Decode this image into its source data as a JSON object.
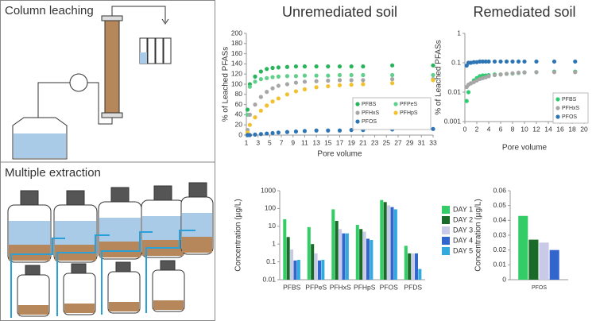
{
  "diagrams": {
    "column_leaching": {
      "title": "Column leaching"
    },
    "multiple_extraction": {
      "title": "Multiple extraction"
    }
  },
  "chart_data": [
    {
      "type": "scatter",
      "title": "Unremediated soil",
      "x_label": "Pore volume",
      "y_label": "% of Leached PFASs",
      "x": [
        1.2,
        1.6,
        2.5,
        3.5,
        4.5,
        5.5,
        6.5,
        8,
        9.5,
        11,
        13,
        15,
        17,
        19,
        21,
        26,
        33
      ],
      "xlim": [
        1,
        33
      ],
      "xticks": [
        1,
        3,
        5,
        7,
        9,
        11,
        13,
        15,
        17,
        19,
        21,
        23,
        25,
        27,
        29,
        31,
        33
      ],
      "ylim": [
        0,
        200
      ],
      "yticks": [
        0,
        20,
        40,
        60,
        80,
        100,
        120,
        140,
        160,
        180,
        200
      ],
      "log_y": false,
      "legend": "lower right",
      "series": [
        {
          "name": "PFBS",
          "color": "#29b35a",
          "values": [
            50,
            100,
            115,
            125,
            130,
            132,
            133,
            134,
            135,
            135,
            135,
            135,
            135,
            135,
            135,
            137,
            137
          ]
        },
        {
          "name": "PFPeS",
          "color": "#5fd08a",
          "values": [
            40,
            95,
            105,
            110,
            112,
            114,
            115,
            116,
            116,
            117,
            117,
            117,
            118,
            118,
            118,
            118,
            118
          ]
        },
        {
          "name": "PFHxS",
          "color": "#a6a6a6",
          "values": [
            10,
            40,
            60,
            75,
            85,
            92,
            97,
            100,
            103,
            105,
            106,
            107,
            108,
            108,
            108,
            110,
            110
          ]
        },
        {
          "name": "PFHpS",
          "color": "#f2c12e",
          "values": [
            5,
            20,
            35,
            48,
            58,
            66,
            72,
            80,
            86,
            90,
            94,
            96,
            98,
            99,
            100,
            102,
            108
          ]
        },
        {
          "name": "PFOS",
          "color": "#2e75b6",
          "values": [
            0,
            0,
            1,
            2,
            3,
            4,
            5,
            6,
            7,
            8,
            9,
            9,
            9,
            10,
            10,
            11,
            12
          ]
        }
      ]
    },
    {
      "type": "scatter",
      "title": "Remediated soil",
      "x_label": "Pore volume",
      "y_label": "% of Leached PFASs",
      "x": [
        0.3,
        0.6,
        1,
        1.5,
        2,
        2.5,
        3,
        3.5,
        4,
        5,
        6,
        7,
        8,
        9,
        10,
        12,
        15,
        18.5
      ],
      "xlim": [
        0,
        20
      ],
      "xticks": [
        0,
        2,
        4,
        6,
        8,
        10,
        12,
        14,
        16,
        18,
        20
      ],
      "ylim": [
        0.001,
        1
      ],
      "yticks": [
        0.001,
        0.01,
        0.1,
        1
      ],
      "log_y": true,
      "legend": "lower right",
      "series": [
        {
          "name": "PFBS",
          "color": "#2ecc71",
          "values": [
            0.005,
            0.01,
            0.02,
            0.025,
            0.03,
            0.035,
            0.037,
            0.037,
            0.038,
            0.04,
            0.04,
            0.042,
            0.043,
            0.045,
            0.047,
            0.048,
            0.05,
            0.05
          ]
        },
        {
          "name": "PFHxS",
          "color": "#a6a6a6",
          "values": [
            0.015,
            0.018,
            0.02,
            0.022,
            0.025,
            0.028,
            0.03,
            0.032,
            0.035,
            0.038,
            0.04,
            0.042,
            0.044,
            0.046,
            0.047,
            0.048,
            0.048,
            0.048
          ]
        },
        {
          "name": "PFOS",
          "color": "#2e75b6",
          "values": [
            0.08,
            0.1,
            0.1,
            0.105,
            0.105,
            0.11,
            0.11,
            0.11,
            0.11,
            0.11,
            0.11,
            0.11,
            0.11,
            0.11,
            0.11,
            0.11,
            0.11,
            0.11
          ]
        }
      ]
    },
    {
      "type": "bar",
      "y_label": "Concentration (µg/L)",
      "categories": [
        "PFBS",
        "PFPeS",
        "PFHxS",
        "PFHpS",
        "PFOS",
        "PFDS"
      ],
      "ylim": [
        0.01,
        1000
      ],
      "yticks": [
        0.01,
        0.1,
        1,
        10,
        100,
        1000
      ],
      "log_y": true,
      "legend": "right",
      "series": [
        {
          "name": "DAY 1",
          "color": "#33cc66",
          "values": [
            25,
            9,
            90,
            12,
            300,
            0.8
          ]
        },
        {
          "name": "DAY 2",
          "color": "#1a6b2a",
          "values": [
            2.5,
            1,
            20,
            7,
            230,
            0.3
          ]
        },
        {
          "name": "DAY 3",
          "color": "#c9c9e8",
          "values": [
            0.5,
            0.3,
            7,
            5,
            150,
            0.3
          ]
        },
        {
          "name": "DAY 4",
          "color": "#3366cc",
          "values": [
            0.12,
            0.12,
            4,
            2,
            120,
            0.3
          ]
        },
        {
          "name": "DAY 5",
          "color": "#33aadd",
          "values": [
            0.13,
            0.13,
            4,
            1.7,
            90,
            0.04
          ]
        }
      ]
    },
    {
      "type": "bar",
      "y_label": "Concentration (µg/L)",
      "categories": [
        "PFOS"
      ],
      "ylim": [
        0,
        0.06
      ],
      "yticks": [
        0,
        0.01,
        0.02,
        0.03,
        0.04,
        0.05,
        0.06
      ],
      "log_y": false,
      "series": [
        {
          "color": "#33cc66",
          "values": [
            0.043
          ]
        },
        {
          "color": "#1a6b2a",
          "values": [
            0.027
          ]
        },
        {
          "color": "#c9c9e8",
          "values": [
            0.025
          ]
        },
        {
          "color": "#3366cc",
          "values": [
            0.02
          ]
        }
      ]
    }
  ]
}
